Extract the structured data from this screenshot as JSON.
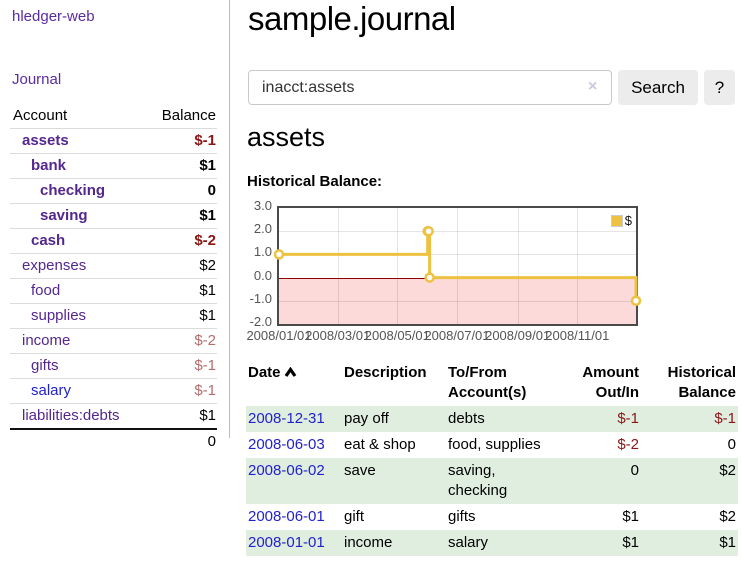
{
  "colors": {
    "accent_purple": "#54278e",
    "link_blue": "#2222cc",
    "negative_dark_red": "#8c1616",
    "negative_soft_red": "#b56d6d",
    "row_green": "#e0eee0",
    "chart_line_yellow": "#edc240",
    "chart_negative_fill": "#fcdada",
    "chart_zero_line": "#8b0000"
  },
  "sidebar": {
    "brand": "hledger-web",
    "nav": {
      "journal": "Journal"
    },
    "accounts": {
      "header_account": "Account",
      "header_balance": "Balance",
      "rows": [
        {
          "name": "assets",
          "balance": "$-1"
        },
        {
          "name": "bank",
          "balance": "$1"
        },
        {
          "name": "checking",
          "balance": "0"
        },
        {
          "name": "saving",
          "balance": "$1"
        },
        {
          "name": "cash",
          "balance": "$-2"
        },
        {
          "name": "expenses",
          "balance": "$2"
        },
        {
          "name": "food",
          "balance": "$1"
        },
        {
          "name": "supplies",
          "balance": "$1"
        },
        {
          "name": "income",
          "balance": "$-2"
        },
        {
          "name": "gifts",
          "balance": "$-1"
        },
        {
          "name": "salary",
          "balance": "$-1"
        },
        {
          "name": "liabilities:debts",
          "balance": "$1"
        }
      ],
      "total": "0"
    }
  },
  "main": {
    "title": "sample.journal",
    "search": {
      "value": "inacct:assets",
      "clear_icon": "×",
      "button_label": "Search",
      "help_label": "?"
    },
    "account_heading": "assets",
    "chart_heading": "Historical Balance:"
  },
  "chart_data": {
    "type": "line",
    "title": "Historical Balance:",
    "x_range": [
      "2008-01-01",
      "2008-12-31"
    ],
    "ylim": [
      -2.0,
      3.0
    ],
    "yticks": [
      3.0,
      2.0,
      1.0,
      0.0,
      -1.0,
      -2.0
    ],
    "xtick_labels": [
      "2008/01/01",
      "2008/03/01",
      "2008/05/01",
      "2008/07/01",
      "2008/09/01",
      "2008/11/01"
    ],
    "series": [
      {
        "name": "$",
        "color": "#edc240",
        "steps": true,
        "points": [
          {
            "date": "2008-01-01",
            "value": 1
          },
          {
            "date": "2008-06-01",
            "value": 2
          },
          {
            "date": "2008-06-02",
            "value": 2
          },
          {
            "date": "2008-06-03",
            "value": 0
          },
          {
            "date": "2008-12-31",
            "value": -1
          }
        ]
      }
    ],
    "legend": {
      "position": "top-right",
      "entries": [
        {
          "label": "$",
          "color": "#edc240"
        }
      ]
    },
    "negative_region_fill": "#fcdada",
    "zero_line_color": "#8b0000",
    "grid": true
  },
  "register": {
    "headers": {
      "date": "Date",
      "description": "Description",
      "tofrom": "To/From Account(s)",
      "amount": "Amount Out/In",
      "balance": "Historical Balance"
    },
    "rows": [
      {
        "date": "2008-12-31",
        "description": "pay off",
        "accounts": "debts",
        "amount": "$-1",
        "balance": "$-1"
      },
      {
        "date": "2008-06-03",
        "description": "eat & shop",
        "accounts": "food, supplies",
        "amount": "$-2",
        "balance": "0"
      },
      {
        "date": "2008-06-02",
        "description": "save",
        "accounts": "saving, checking",
        "amount": "0",
        "balance": "$2"
      },
      {
        "date": "2008-06-01",
        "description": "gift",
        "accounts": "gifts",
        "amount": "$1",
        "balance": "$2"
      },
      {
        "date": "2008-01-01",
        "description": "income",
        "accounts": "salary",
        "amount": "$1",
        "balance": "$1"
      }
    ]
  }
}
